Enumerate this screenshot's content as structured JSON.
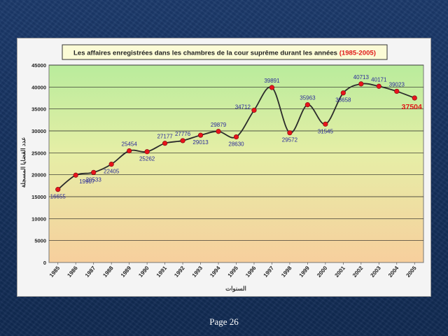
{
  "slide": {
    "page_label": "Page 26"
  },
  "colors": {
    "line": "#2b2b2b",
    "marker": "#e8141c",
    "data_label": "#2a2a9a",
    "highlight_label": "#e01818",
    "plot_top": "#b9ec9c",
    "plot_bottom": "#f7cf9d"
  },
  "chart_data": {
    "type": "line",
    "title": "Les affaires enregistrées dans les chambres de la cour suprême durant les années",
    "title_highlight": "(1985-2005)",
    "xlabel": "السنوات",
    "ylabel": "عدد القضايا المسجلة",
    "ylim": [
      0,
      45000
    ],
    "yticks": [
      0,
      5000,
      10000,
      15000,
      20000,
      25000,
      30000,
      35000,
      40000,
      45000
    ],
    "grid": true,
    "legend": "none",
    "categories": [
      "1985",
      "1986",
      "1987",
      "1988",
      "1989",
      "1990",
      "1991",
      "1992",
      "1993",
      "1994",
      "1995",
      "1996",
      "1997",
      "1998",
      "1999",
      "2000",
      "2001",
      "2002",
      "2003",
      "2004",
      "2005"
    ],
    "values": [
      16655,
      19907,
      20533,
      22405,
      25454,
      25262,
      27177,
      27776,
      29013,
      29879,
      28630,
      34712,
      39891,
      29572,
      35963,
      31545,
      38658,
      40713,
      40171,
      39023,
      37504
    ],
    "data_labels": [
      "16655",
      "19907",
      "20533",
      "22405",
      "25454",
      "25262",
      "27177",
      "27776",
      "29013",
      "29879",
      "28630",
      "34712",
      "39891",
      "29572",
      "35963",
      "31545",
      "38658",
      "40713",
      "40171",
      "39023",
      "37504"
    ]
  }
}
